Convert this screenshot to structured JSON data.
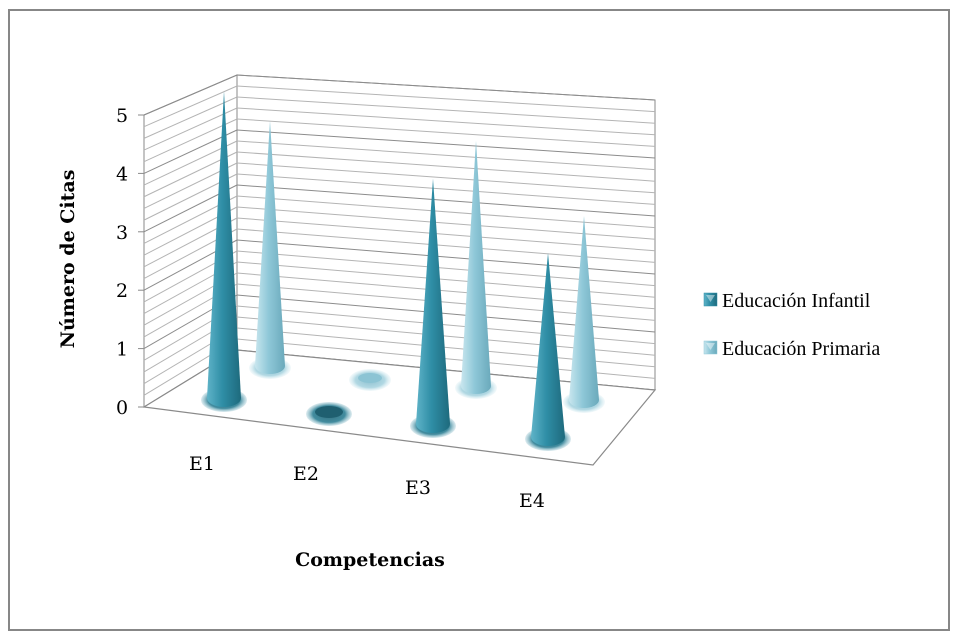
{
  "chart_data": {
    "type": "bar",
    "shape": "3d-cone",
    "categories": [
      "E1",
      "E2",
      "E3",
      "E4"
    ],
    "series": [
      {
        "name": "Educación Infantil",
        "values": [
          5,
          0,
          4,
          3
        ],
        "color": "#2f8ea6"
      },
      {
        "name": "Educación Primaria",
        "values": [
          4,
          0,
          4,
          3
        ],
        "color": "#8fc8d8"
      }
    ],
    "xlabel": "Competencias",
    "ylabel": "Número de Citas",
    "ylim": [
      0,
      5
    ],
    "yticks": [
      "0",
      "1",
      "2",
      "3",
      "4",
      "5"
    ],
    "grid": true,
    "legend_position": "right"
  }
}
